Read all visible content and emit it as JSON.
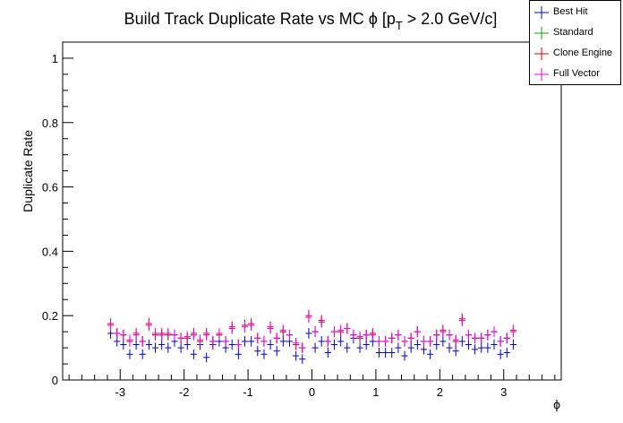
{
  "chart_data": {
    "type": "scatter",
    "title": "Build Track Duplicate Rate vs MC ϕ [p",
    "title_sub": "T",
    "title_tail": " > 2.0 GeV/c]",
    "xlabel": "ϕ",
    "ylabel": "Duplicate Rate",
    "xlim": [
      -3.9,
      3.9
    ],
    "ylim": [
      0,
      1.05
    ],
    "xticks": [
      -3,
      -2,
      -1,
      0,
      1,
      2,
      3
    ],
    "xtick_labels": [
      "-3",
      "-2",
      "-1",
      "0",
      "1",
      "2",
      "3"
    ],
    "yticks": [
      0,
      0.2,
      0.4,
      0.6,
      0.8,
      1
    ],
    "ytick_labels": [
      "0",
      "0.2",
      "0.4",
      "0.6",
      "0.8",
      "1"
    ],
    "bin_half_width": 0.05,
    "legend_position": "top-right",
    "series": [
      {
        "name": "Best Hit",
        "color": "#0000cc",
        "x": [
          -3.15,
          -3.05,
          -2.95,
          -2.85,
          -2.75,
          -2.65,
          -2.55,
          -2.45,
          -2.35,
          -2.25,
          -2.15,
          -2.05,
          -1.95,
          -1.85,
          -1.75,
          -1.65,
          -1.55,
          -1.45,
          -1.35,
          -1.25,
          -1.15,
          -1.05,
          -0.95,
          -0.85,
          -0.75,
          -0.65,
          -0.55,
          -0.45,
          -0.35,
          -0.25,
          -0.15,
          -0.05,
          0.05,
          0.15,
          0.25,
          0.35,
          0.45,
          0.55,
          0.65,
          0.75,
          0.85,
          0.95,
          1.05,
          1.15,
          1.25,
          1.35,
          1.45,
          1.55,
          1.65,
          1.75,
          1.85,
          1.95,
          2.05,
          2.15,
          2.25,
          2.35,
          2.45,
          2.55,
          2.65,
          2.75,
          2.85,
          2.95,
          3.05,
          3.15
        ],
        "y": [
          0.145,
          0.12,
          0.11,
          0.08,
          0.11,
          0.08,
          0.11,
          0.1,
          0.11,
          0.1,
          0.12,
          0.1,
          0.11,
          0.08,
          0.11,
          0.07,
          0.11,
          0.12,
          0.1,
          0.11,
          0.08,
          0.12,
          0.12,
          0.09,
          0.08,
          0.11,
          0.09,
          0.12,
          0.12,
          0.075,
          0.065,
          0.145,
          0.1,
          0.12,
          0.085,
          0.11,
          0.12,
          0.1,
          0.13,
          0.1,
          0.11,
          0.12,
          0.085,
          0.085,
          0.085,
          0.1,
          0.075,
          0.1,
          0.11,
          0.095,
          0.08,
          0.11,
          0.12,
          0.1,
          0.09,
          0.12,
          0.11,
          0.095,
          0.1,
          0.1,
          0.11,
          0.08,
          0.085,
          0.11
        ]
      },
      {
        "name": "Standard",
        "color": "#00aa00",
        "x": [
          -3.15,
          -3.05,
          -2.95,
          -2.85,
          -2.75,
          -2.65,
          -2.55,
          -2.45,
          -2.35,
          -2.25,
          -2.15,
          -2.05,
          -1.95,
          -1.85,
          -1.75,
          -1.65,
          -1.55,
          -1.45,
          -1.35,
          -1.25,
          -1.15,
          -1.05,
          -0.95,
          -0.85,
          -0.75,
          -0.65,
          -0.55,
          -0.45,
          -0.35,
          -0.25,
          -0.15,
          -0.05,
          0.05,
          0.15,
          0.25,
          0.35,
          0.45,
          0.55,
          0.65,
          0.75,
          0.85,
          0.95,
          1.05,
          1.15,
          1.25,
          1.35,
          1.45,
          1.55,
          1.65,
          1.75,
          1.85,
          1.95,
          2.05,
          2.15,
          2.25,
          2.35,
          2.45,
          2.55,
          2.65,
          2.75,
          2.85,
          2.95,
          3.05,
          3.15
        ],
        "y": [
          0.17,
          0.145,
          0.14,
          0.12,
          0.14,
          0.12,
          0.17,
          0.14,
          0.14,
          0.14,
          0.14,
          0.13,
          0.13,
          0.14,
          0.12,
          0.14,
          0.12,
          0.14,
          0.12,
          0.16,
          0.11,
          0.17,
          0.17,
          0.13,
          0.12,
          0.16,
          0.13,
          0.15,
          0.14,
          0.11,
          0.1,
          0.195,
          0.15,
          0.18,
          0.12,
          0.15,
          0.15,
          0.16,
          0.14,
          0.13,
          0.14,
          0.14,
          0.12,
          0.12,
          0.13,
          0.14,
          0.12,
          0.13,
          0.15,
          0.12,
          0.12,
          0.14,
          0.15,
          0.14,
          0.12,
          0.185,
          0.14,
          0.13,
          0.13,
          0.14,
          0.15,
          0.12,
          0.13,
          0.15
        ]
      },
      {
        "name": "Clone Engine",
        "color": "#dd0000",
        "x": [
          -3.15,
          -3.05,
          -2.95,
          -2.85,
          -2.75,
          -2.65,
          -2.55,
          -2.45,
          -2.35,
          -2.25,
          -2.15,
          -2.05,
          -1.95,
          -1.85,
          -1.75,
          -1.65,
          -1.55,
          -1.45,
          -1.35,
          -1.25,
          -1.15,
          -1.05,
          -0.95,
          -0.85,
          -0.75,
          -0.65,
          -0.55,
          -0.45,
          -0.35,
          -0.25,
          -0.15,
          -0.05,
          0.05,
          0.15,
          0.25,
          0.35,
          0.45,
          0.55,
          0.65,
          0.75,
          0.85,
          0.95,
          1.05,
          1.15,
          1.25,
          1.35,
          1.45,
          1.55,
          1.65,
          1.75,
          1.85,
          1.95,
          2.05,
          2.15,
          2.25,
          2.35,
          2.45,
          2.55,
          2.65,
          2.75,
          2.85,
          2.95,
          3.05,
          3.15
        ],
        "y": [
          0.175,
          0.145,
          0.14,
          0.12,
          0.145,
          0.12,
          0.175,
          0.14,
          0.145,
          0.14,
          0.14,
          0.13,
          0.13,
          0.145,
          0.12,
          0.145,
          0.12,
          0.14,
          0.12,
          0.165,
          0.11,
          0.17,
          0.175,
          0.13,
          0.12,
          0.165,
          0.13,
          0.15,
          0.14,
          0.11,
          0.1,
          0.2,
          0.15,
          0.185,
          0.12,
          0.15,
          0.15,
          0.16,
          0.14,
          0.13,
          0.14,
          0.145,
          0.12,
          0.12,
          0.13,
          0.14,
          0.12,
          0.13,
          0.15,
          0.12,
          0.12,
          0.14,
          0.155,
          0.14,
          0.12,
          0.19,
          0.14,
          0.13,
          0.13,
          0.14,
          0.15,
          0.12,
          0.13,
          0.155
        ]
      },
      {
        "name": "Full Vector",
        "color": "#ee00ee",
        "x": [
          -3.15,
          -3.05,
          -2.95,
          -2.85,
          -2.75,
          -2.65,
          -2.55,
          -2.45,
          -2.35,
          -2.25,
          -2.15,
          -2.05,
          -1.95,
          -1.85,
          -1.75,
          -1.65,
          -1.55,
          -1.45,
          -1.35,
          -1.25,
          -1.15,
          -1.05,
          -0.95,
          -0.85,
          -0.75,
          -0.65,
          -0.55,
          -0.45,
          -0.35,
          -0.25,
          -0.15,
          -0.05,
          0.05,
          0.15,
          0.25,
          0.35,
          0.45,
          0.55,
          0.65,
          0.75,
          0.85,
          0.95,
          1.05,
          1.15,
          1.25,
          1.35,
          1.45,
          1.55,
          1.65,
          1.75,
          1.85,
          1.95,
          2.05,
          2.15,
          2.25,
          2.35,
          2.45,
          2.55,
          2.65,
          2.75,
          2.85,
          2.95,
          3.05,
          3.15
        ],
        "y": [
          0.17,
          0.145,
          0.14,
          0.125,
          0.14,
          0.12,
          0.17,
          0.145,
          0.14,
          0.145,
          0.14,
          0.13,
          0.135,
          0.14,
          0.125,
          0.14,
          0.12,
          0.145,
          0.12,
          0.16,
          0.11,
          0.165,
          0.17,
          0.13,
          0.12,
          0.16,
          0.13,
          0.155,
          0.14,
          0.115,
          0.1,
          0.195,
          0.15,
          0.18,
          0.12,
          0.15,
          0.155,
          0.16,
          0.14,
          0.135,
          0.14,
          0.14,
          0.12,
          0.12,
          0.13,
          0.14,
          0.12,
          0.13,
          0.15,
          0.12,
          0.12,
          0.14,
          0.15,
          0.14,
          0.125,
          0.185,
          0.14,
          0.13,
          0.13,
          0.14,
          0.15,
          0.12,
          0.13,
          0.15
        ]
      }
    ]
  }
}
